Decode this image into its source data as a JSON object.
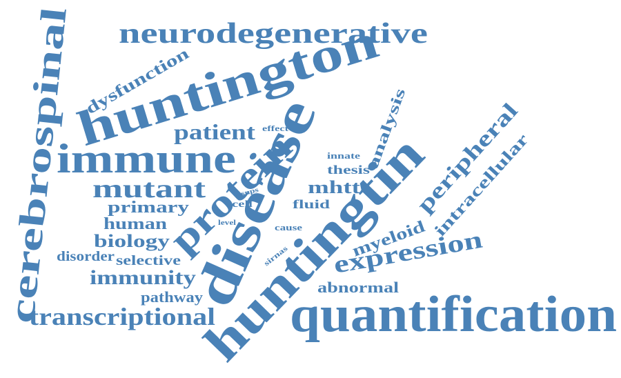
{
  "word_color": "#4a82b7",
  "words": [
    "quantification",
    "huntingtin",
    "huntington",
    "disease",
    "protein",
    "immune",
    "neurodegenerative",
    "cerebrospinal",
    "transcriptional",
    "expression",
    "peripheral",
    "intracellular",
    "dysfunction",
    "patient",
    "mutant",
    "primary",
    "human",
    "biology",
    "disorder",
    "selective",
    "immunity",
    "pathway",
    "abnormal",
    "myeloid",
    "analysis",
    "thesis",
    "innate",
    "mhtt",
    "fluid",
    "cell",
    "snps",
    "level",
    "cause",
    "sirnas",
    "effect"
  ]
}
